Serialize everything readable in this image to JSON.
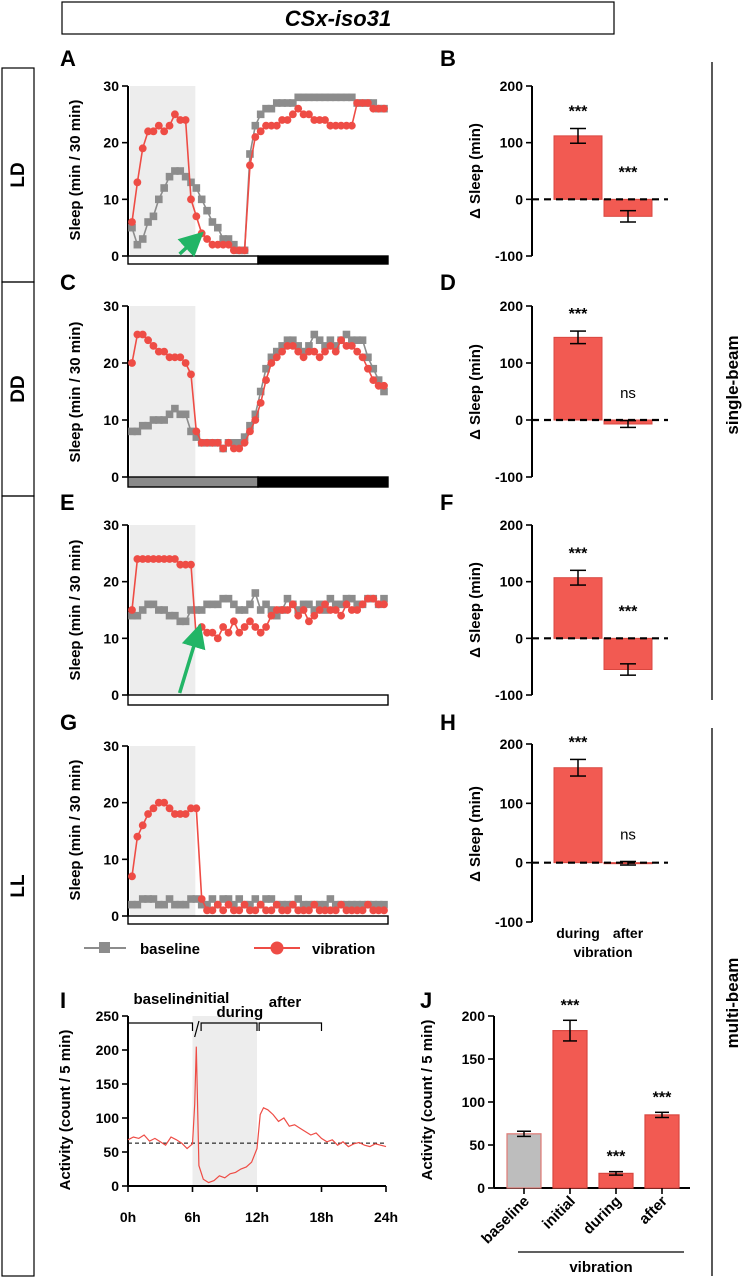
{
  "title": "CSx-iso31",
  "side_labels": {
    "ld": "LD",
    "dd": "DD",
    "ll": "LL",
    "single_beam": "single-beam",
    "multi_beam": "multi-beam"
  },
  "colors": {
    "baseline": "#8c8c8c",
    "vibration": "#ee4c45",
    "vibration_bar": "#f25a52",
    "shade": "#ededed"
  },
  "legend": {
    "baseline": "baseline",
    "vibration": "vibration"
  },
  "chart_data": [
    {
      "panel": "A",
      "type": "line",
      "ylabel": "Sleep (min / 30 min)",
      "ylim": [
        0,
        30
      ],
      "yticks": [
        0,
        10,
        20,
        30
      ],
      "shade_bins": [
        0,
        12
      ],
      "light_bar": [
        "white",
        "black"
      ],
      "arrow": true,
      "series": [
        {
          "name": "baseline",
          "values": [
            5,
            2,
            3,
            6,
            7,
            10,
            12,
            14,
            15,
            15,
            14,
            13,
            12,
            10,
            8,
            6,
            5,
            3,
            3,
            2,
            1,
            1,
            18,
            23,
            25,
            26,
            26,
            27,
            27,
            27,
            27,
            28,
            28,
            28,
            28,
            28,
            28,
            28,
            28,
            28,
            28,
            28,
            27,
            27,
            27,
            27,
            26,
            26
          ]
        },
        {
          "name": "vibration",
          "values": [
            6,
            13,
            19,
            22,
            22,
            23,
            22,
            23,
            25,
            24,
            24,
            10,
            7,
            4,
            3,
            2,
            2,
            2,
            2,
            1,
            1,
            1,
            16,
            21,
            22,
            23,
            23,
            23,
            24,
            24,
            25,
            26,
            25,
            25,
            24,
            24,
            24,
            23,
            23,
            23,
            23,
            23,
            27,
            27,
            27,
            26,
            26,
            26
          ]
        }
      ]
    },
    {
      "panel": "C",
      "type": "line",
      "ylabel": "Sleep (min / 30 min)",
      "ylim": [
        0,
        30
      ],
      "yticks": [
        0,
        10,
        20,
        30
      ],
      "shade_bins": [
        0,
        12
      ],
      "light_bar": [
        "gray",
        "black"
      ],
      "series": [
        {
          "name": "baseline",
          "values": [
            8,
            8,
            9,
            9,
            10,
            10,
            10,
            11,
            12,
            11,
            11,
            8,
            7,
            6,
            6,
            6,
            6,
            5,
            6,
            6,
            6,
            7,
            9,
            11,
            15,
            19,
            21,
            22,
            23,
            24,
            24,
            23,
            22,
            23,
            25,
            24,
            23,
            24,
            23,
            24,
            25,
            24,
            24,
            24,
            21,
            19,
            17,
            15
          ]
        },
        {
          "name": "vibration",
          "values": [
            20,
            25,
            25,
            24,
            23,
            22,
            22,
            21,
            21,
            21,
            20,
            18,
            8,
            6,
            6,
            6,
            6,
            5,
            6,
            5,
            5,
            6,
            8,
            10,
            13,
            17,
            20,
            21,
            22,
            23,
            23,
            22,
            21,
            22,
            22,
            21,
            22,
            23,
            22,
            24,
            23,
            23,
            22,
            21,
            19,
            17,
            16,
            16
          ]
        }
      ]
    },
    {
      "panel": "E",
      "type": "line",
      "ylabel": "Sleep (min / 30 min)",
      "ylim": [
        0,
        30
      ],
      "yticks": [
        0,
        10,
        20,
        30
      ],
      "shade_bins": [
        0,
        12
      ],
      "light_bar": [
        "white"
      ],
      "arrow": true,
      "series": [
        {
          "name": "baseline",
          "values": [
            14,
            14,
            15,
            16,
            16,
            15,
            15,
            14,
            14,
            13,
            13,
            15,
            15,
            15,
            16,
            16,
            16,
            17,
            17,
            16,
            15,
            15,
            16,
            18,
            15,
            16,
            15,
            14,
            15,
            17,
            16,
            15,
            16,
            16,
            15,
            16,
            15,
            17,
            16,
            16,
            17,
            17,
            16,
            16,
            17,
            17,
            16,
            17
          ]
        },
        {
          "name": "vibration",
          "values": [
            15,
            24,
            24,
            24,
            24,
            24,
            24,
            24,
            24,
            23,
            23,
            23,
            10,
            12,
            11,
            11,
            10,
            12,
            11,
            13,
            11,
            12,
            13,
            12,
            11,
            12,
            14,
            15,
            15,
            15,
            16,
            14,
            15,
            13,
            14,
            15,
            16,
            15,
            15,
            14,
            16,
            15,
            15,
            16,
            17,
            17,
            16,
            16
          ]
        }
      ]
    },
    {
      "panel": "G",
      "type": "line",
      "ylabel": "Sleep (min / 30 min)",
      "ylim": [
        0,
        30
      ],
      "yticks": [
        0,
        10,
        20,
        30
      ],
      "shade_bins": [
        0,
        12
      ],
      "light_bar": [
        "white"
      ],
      "series": [
        {
          "name": "baseline",
          "values": [
            2,
            2,
            3,
            3,
            3,
            2,
            2,
            3,
            2,
            2,
            2,
            3,
            3,
            2,
            2,
            3,
            2,
            3,
            3,
            2,
            3,
            2,
            2,
            3,
            2,
            3,
            3,
            2,
            2,
            2,
            2,
            3,
            2,
            2,
            2,
            2,
            2,
            3,
            2,
            2,
            2,
            2,
            2,
            2,
            2,
            2,
            2,
            2
          ]
        },
        {
          "name": "vibration",
          "values": [
            7,
            14,
            16,
            18,
            19,
            20,
            20,
            19,
            18,
            18,
            18,
            19,
            19,
            3,
            1,
            1,
            2,
            1,
            2,
            1,
            1,
            2,
            1,
            1,
            2,
            1,
            1,
            2,
            1,
            1,
            2,
            1,
            1,
            1,
            2,
            1,
            1,
            1,
            1,
            2,
            1,
            1,
            1,
            1,
            2,
            1,
            1,
            1
          ]
        }
      ]
    },
    {
      "panel": "B",
      "type": "bar",
      "ylabel": "Δ Sleep (min)",
      "ylim": [
        -100,
        200
      ],
      "yticks": [
        -100,
        0,
        100,
        200
      ],
      "categories": [
        "during",
        "after"
      ],
      "values": [
        112,
        -30
      ],
      "errors": [
        13,
        10
      ],
      "significance": [
        "***",
        "***"
      ]
    },
    {
      "panel": "D",
      "type": "bar",
      "ylabel": "Δ Sleep (min)",
      "ylim": [
        -100,
        200
      ],
      "yticks": [
        -100,
        0,
        100,
        200
      ],
      "categories": [
        "during",
        "after"
      ],
      "values": [
        145,
        -7
      ],
      "errors": [
        11,
        6
      ],
      "significance": [
        "***",
        "ns"
      ]
    },
    {
      "panel": "F",
      "type": "bar",
      "ylabel": "Δ Sleep (min)",
      "ylim": [
        -100,
        200
      ],
      "yticks": [
        -100,
        0,
        100,
        200
      ],
      "categories": [
        "during",
        "after"
      ],
      "values": [
        107,
        -55
      ],
      "errors": [
        13,
        10
      ],
      "significance": [
        "***",
        "***"
      ]
    },
    {
      "panel": "H",
      "type": "bar",
      "ylabel": "Δ Sleep (min)",
      "ylim": [
        -100,
        200
      ],
      "yticks": [
        -100,
        0,
        100,
        200
      ],
      "categories": [
        "during",
        "after"
      ],
      "values": [
        160,
        -1
      ],
      "errors": [
        14,
        3
      ],
      "significance": [
        "***",
        "ns"
      ],
      "xgroup_label": "vibration"
    },
    {
      "panel": "I",
      "type": "line",
      "ylabel": "Activity (count / 5 min)",
      "ylim": [
        0,
        250
      ],
      "yticks": [
        0,
        50,
        100,
        150,
        200,
        250
      ],
      "xticks": [
        "0h",
        "6h",
        "12h",
        "18h",
        "24h"
      ],
      "shade_hours": [
        6,
        12
      ],
      "reference_line": 63,
      "brackets": {
        "baseline": "baseline",
        "initial": "initial",
        "during": "during",
        "after": "after"
      },
      "x_hours": [
        0,
        0.5,
        1,
        1.5,
        2,
        2.5,
        3,
        3.5,
        4,
        4.5,
        5,
        5.5,
        6,
        6.2,
        6.35,
        6.6,
        7,
        7.5,
        8,
        8.5,
        9,
        9.5,
        10,
        10.5,
        11,
        11.5,
        12,
        12.3,
        12.6,
        13,
        13.5,
        14,
        14.5,
        15,
        15.5,
        16,
        16.5,
        17,
        17.5,
        18,
        18.5,
        19,
        19.5,
        20,
        20.5,
        21,
        21.5,
        22,
        22.5,
        23,
        23.5,
        24
      ],
      "values": [
        68,
        72,
        70,
        75,
        66,
        70,
        65,
        60,
        72,
        68,
        63,
        55,
        62,
        120,
        205,
        30,
        10,
        5,
        8,
        15,
        12,
        18,
        20,
        25,
        28,
        35,
        55,
        105,
        115,
        112,
        105,
        95,
        100,
        88,
        90,
        85,
        80,
        75,
        78,
        70,
        65,
        68,
        60,
        65,
        58,
        62,
        64,
        60,
        58,
        62,
        60,
        58
      ]
    },
    {
      "panel": "J",
      "type": "bar",
      "ylabel": "Activity (count / 5 min)",
      "ylim": [
        0,
        200
      ],
      "yticks": [
        0,
        50,
        100,
        150,
        200
      ],
      "categories": [
        "baseline",
        "initial",
        "during",
        "after"
      ],
      "values": [
        63,
        183,
        17,
        85
      ],
      "errors": [
        3,
        12,
        2,
        3
      ],
      "significance": [
        "",
        "***",
        "***",
        "***"
      ],
      "xgroup_label": "vibration"
    }
  ]
}
